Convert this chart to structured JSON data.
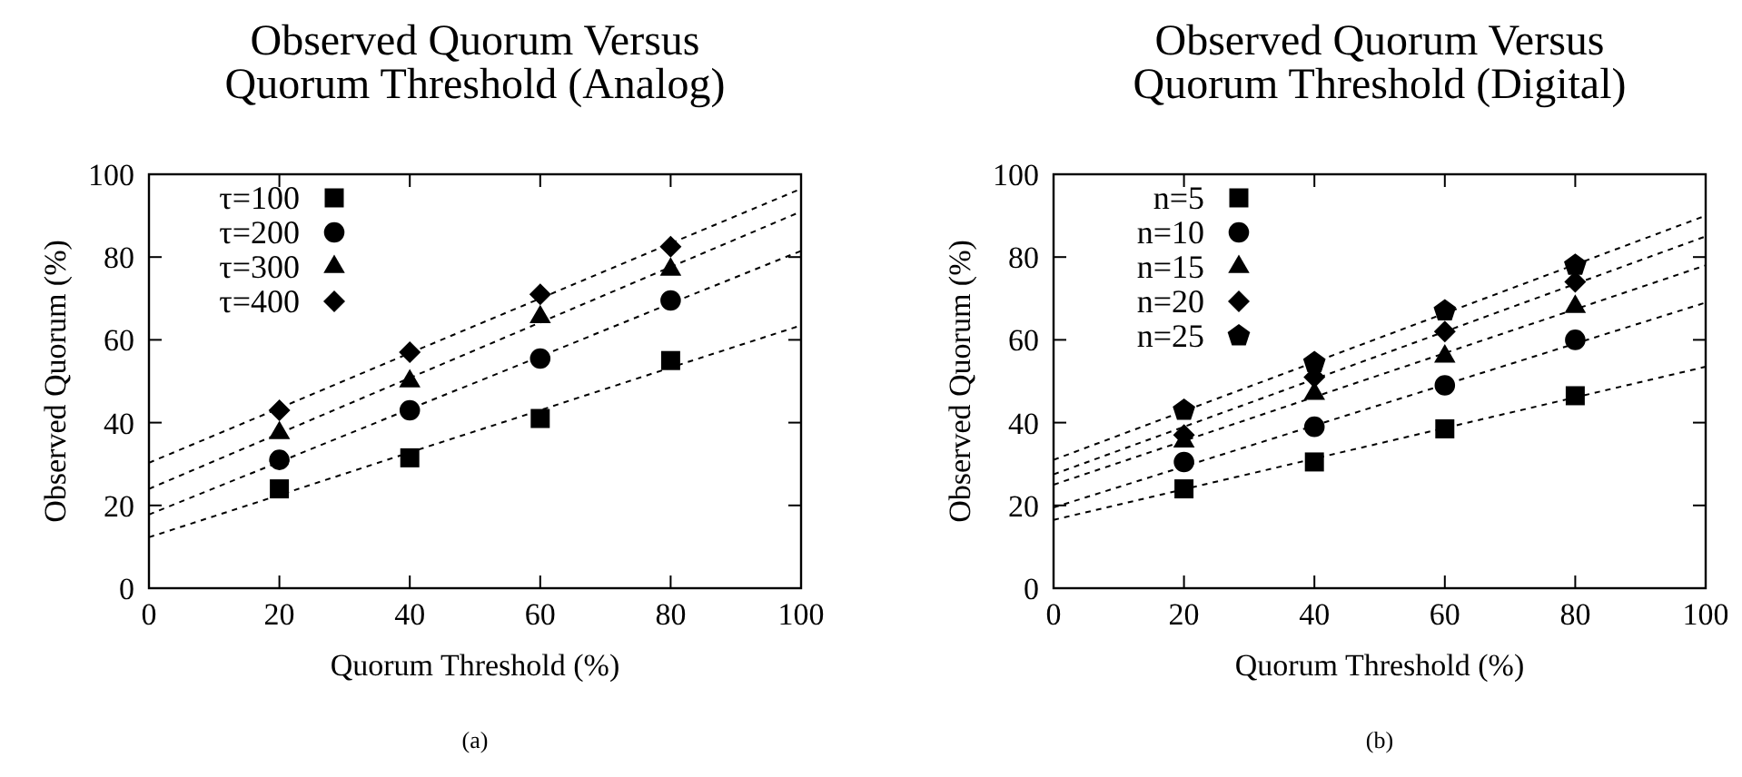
{
  "chart_data": [
    {
      "type": "scatter",
      "title": "Observed Quorum Versus Quorum Threshold (Analog)",
      "xlabel": "Quorum Threshold (%)",
      "ylabel": "Observed Quorum (%)",
      "xlim": [
        0,
        100
      ],
      "ylim": [
        0,
        100
      ],
      "xticks": [
        0,
        20,
        40,
        60,
        80,
        100
      ],
      "yticks": [
        0,
        20,
        40,
        60,
        80,
        100
      ],
      "legend": "top left",
      "annotations": [
        "(a)"
      ],
      "x": [
        0,
        20,
        40,
        60,
        80,
        100
      ],
      "series": [
        {
          "name": "τ=100",
          "color": "#000000",
          "marker": "square",
          "values": [
            null,
            24,
            31.5,
            41,
            55,
            null
          ]
        },
        {
          "name": "τ=200",
          "color": "#000000",
          "marker": "circle",
          "values": [
            null,
            31,
            43,
            55.5,
            69.5,
            null
          ]
        },
        {
          "name": "τ=300",
          "color": "#000000",
          "marker": "triangle",
          "values": [
            null,
            37.5,
            50,
            65.5,
            77,
            null
          ]
        },
        {
          "name": "τ=400",
          "color": "#000000",
          "marker": "diamond",
          "values": [
            null,
            43,
            57,
            71,
            82.5,
            null
          ]
        },
        {
          "type": "line",
          "color": "#000000",
          "line_style": "dashed",
          "marker": "none",
          "values": [
            12.3,
            22.5,
            32.8,
            43,
            53.3,
            63.5
          ]
        },
        {
          "type": "line",
          "color": "#000000",
          "line_style": "dashed",
          "marker": "none",
          "values": [
            17.8,
            30.5,
            43.3,
            56,
            68.8,
            81.5
          ]
        },
        {
          "type": "line",
          "color": "#000000",
          "line_style": "dashed",
          "marker": "none",
          "values": [
            24,
            37.4,
            50.8,
            64.2,
            77.6,
            91
          ]
        },
        {
          "type": "line",
          "color": "#000000",
          "line_style": "dashed",
          "marker": "none",
          "values": [
            30.3,
            43.5,
            56.8,
            70,
            83.3,
            96.5
          ]
        }
      ]
    },
    {
      "type": "scatter",
      "title": "Observed Quorum Versus Quorum Threshold (Digital)",
      "xlabel": "Quorum Threshold (%)",
      "ylabel": "Observed Quorum (%)",
      "xlim": [
        0,
        100
      ],
      "ylim": [
        0,
        100
      ],
      "xticks": [
        0,
        20,
        40,
        60,
        80,
        100
      ],
      "yticks": [
        0,
        20,
        40,
        60,
        80,
        100
      ],
      "legend": "top left",
      "annotations": [
        "(b)"
      ],
      "x": [
        0,
        20,
        40,
        60,
        80,
        100
      ],
      "series": [
        {
          "name": "n=5",
          "color": "#000000",
          "marker": "square",
          "values": [
            null,
            24,
            30.5,
            38.5,
            46.5,
            null
          ]
        },
        {
          "name": "n=10",
          "color": "#000000",
          "marker": "circle",
          "values": [
            null,
            30.5,
            39,
            49,
            60,
            null
          ]
        },
        {
          "name": "n=15",
          "color": "#000000",
          "marker": "triangle",
          "values": [
            null,
            35.5,
            47,
            56,
            68,
            null
          ]
        },
        {
          "name": "n=20",
          "color": "#000000",
          "marker": "diamond",
          "values": [
            null,
            37,
            51,
            62,
            74,
            null
          ]
        },
        {
          "name": "n=25",
          "color": "#000000",
          "values": [
            null,
            43,
            54.5,
            67,
            78,
            null
          ]
        },
        {
          "type": "line",
          "color": "#000000",
          "line_style": "dashed",
          "marker": "none",
          "values": [
            16.5,
            23.9,
            31.3,
            38.7,
            46.1,
            53.5
          ]
        },
        {
          "type": "line",
          "color": "#000000",
          "line_style": "dashed",
          "marker": "none",
          "values": [
            19.5,
            29.4,
            39.3,
            49.2,
            59.1,
            69
          ]
        },
        {
          "type": "line",
          "color": "#000000",
          "line_style": "dashed",
          "marker": "none",
          "values": [
            25,
            35.6,
            46.2,
            56.8,
            67.4,
            78
          ]
        },
        {
          "type": "line",
          "color": "#000000",
          "line_style": "dashed",
          "marker": "none",
          "values": [
            27.5,
            39,
            50.5,
            62,
            73.5,
            85
          ]
        },
        {
          "type": "line",
          "color": "#000000",
          "line_style": "dashed",
          "marker": "none",
          "values": [
            31,
            42.8,
            54.6,
            66.4,
            78.2,
            90
          ]
        }
      ]
    }
  ]
}
